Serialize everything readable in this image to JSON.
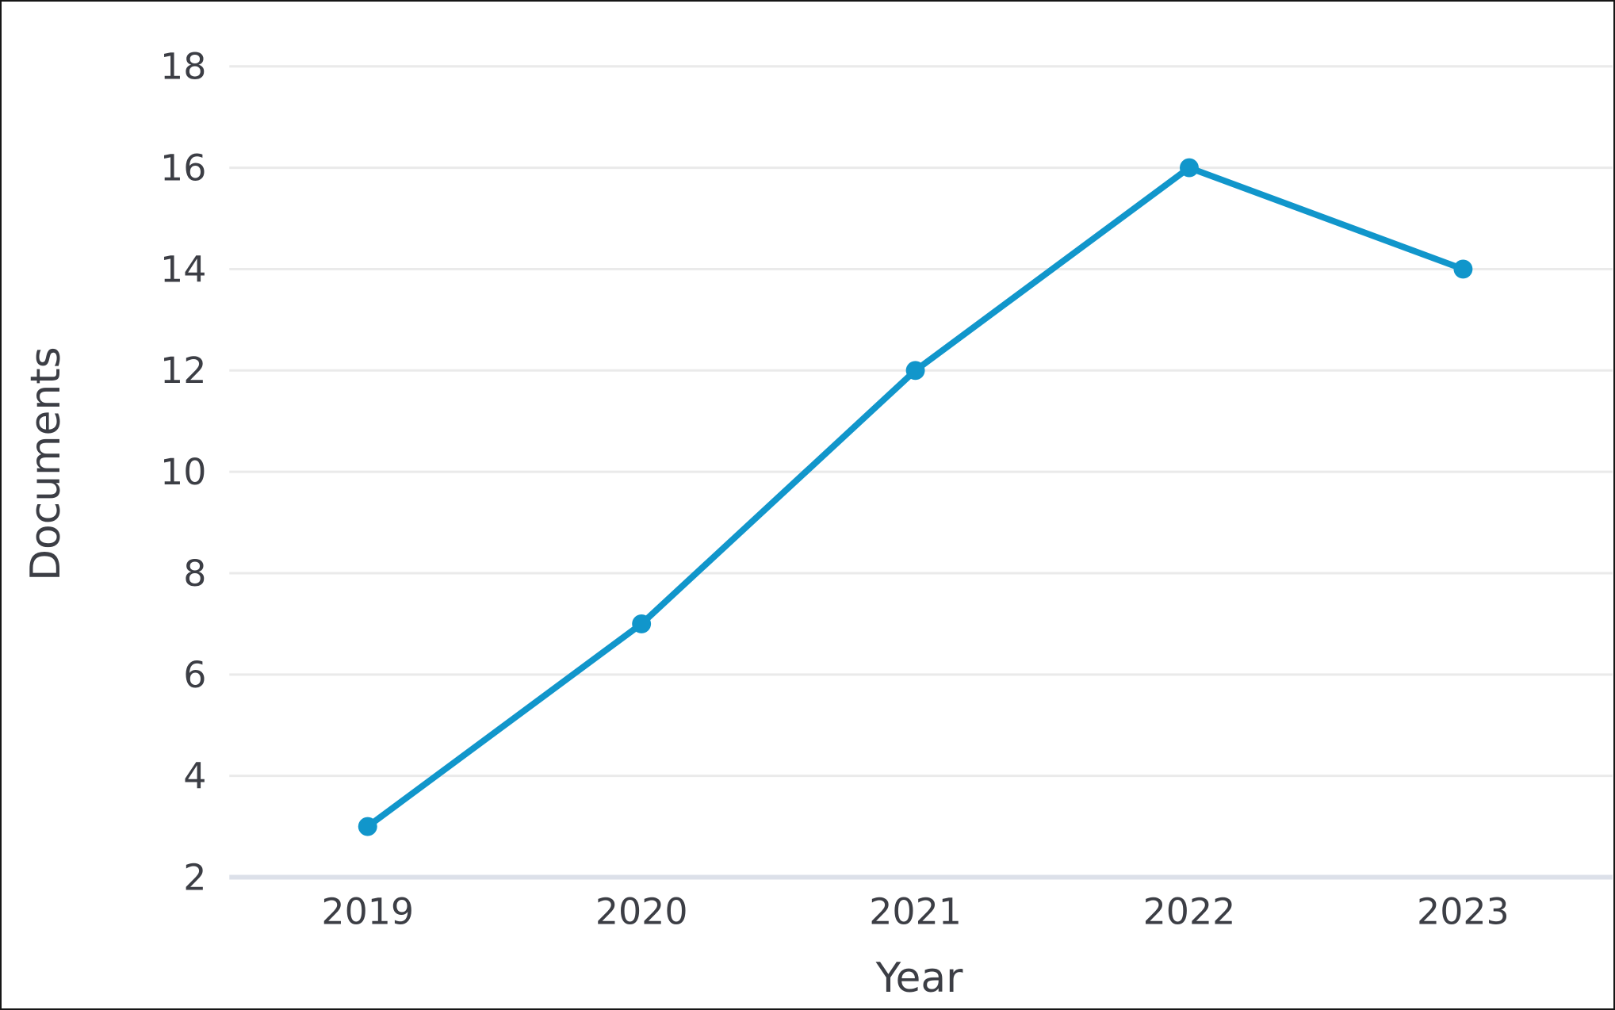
{
  "window": {
    "background": "#ffffff",
    "border_color": "#161616"
  },
  "chart_data": {
    "type": "line",
    "title": "",
    "categories": [
      "2019",
      "2020",
      "2021",
      "2022",
      "2023"
    ],
    "series": [
      {
        "name": "Documents",
        "values": [
          3,
          7,
          12,
          16,
          14
        ]
      }
    ],
    "xlabel": "Year",
    "ylabel": "Documents",
    "ylim": [
      2,
      18
    ],
    "yticks": [
      2,
      4,
      6,
      8,
      10,
      12,
      14,
      16,
      18
    ],
    "grid": "horizontal",
    "legend": "none",
    "marker": "circle",
    "colors": {
      "line": "#1196cb",
      "marker": "#1196cb",
      "gridline": "#eaeaea",
      "axis_line": "#dce0e9",
      "text": "#3c3e45"
    }
  }
}
